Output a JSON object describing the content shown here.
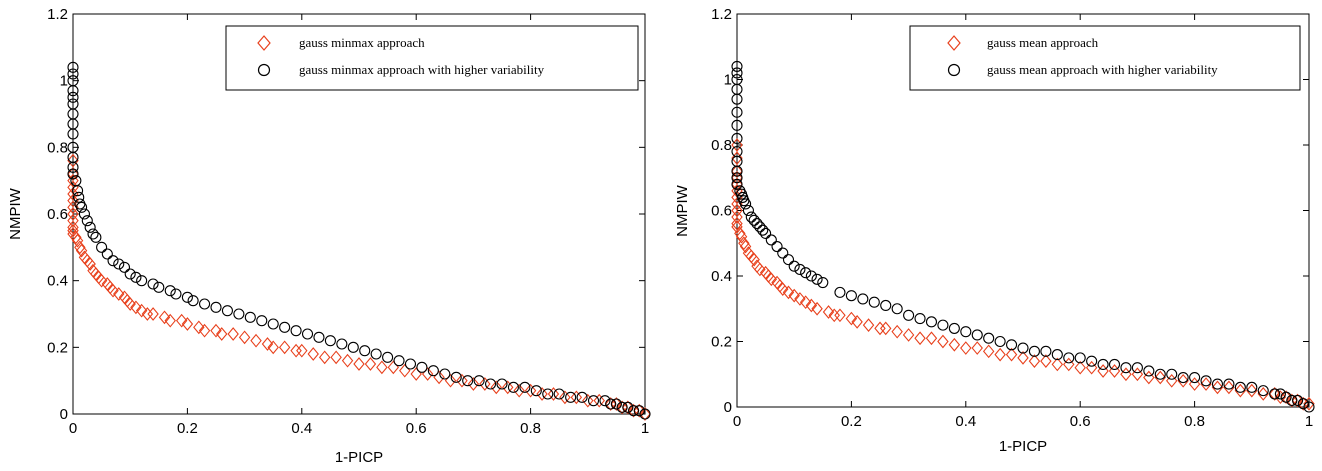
{
  "chart_data": [
    {
      "type": "scatter",
      "xlabel": "1-PICP",
      "ylabel": "NMPIW",
      "xlim": [
        0,
        1
      ],
      "ylim": [
        0,
        1.2
      ],
      "xticks": [
        "0",
        "0.2",
        "0.4",
        "0.6",
        "0.8",
        "1"
      ],
      "yticks": [
        "0",
        "0.2",
        "0.4",
        "0.6",
        "0.8",
        "1",
        "1.2"
      ],
      "grid": false,
      "legend_position": "top-right",
      "series": [
        {
          "name": "gauss minmax approach",
          "marker": "diamond",
          "color": "#e8401c",
          "x": [
            0,
            0,
            0,
            0,
            0,
            0,
            0,
            0,
            0,
            0,
            0,
            0,
            0.005,
            0.008,
            0.012,
            0.015,
            0.02,
            0.025,
            0.03,
            0.035,
            0.04,
            0.045,
            0.05,
            0.06,
            0.065,
            0.07,
            0.08,
            0.09,
            0.095,
            0.1,
            0.11,
            0.12,
            0.13,
            0.14,
            0.16,
            0.17,
            0.19,
            0.2,
            0.22,
            0.23,
            0.25,
            0.26,
            0.28,
            0.3,
            0.32,
            0.34,
            0.35,
            0.37,
            0.39,
            0.4,
            0.42,
            0.44,
            0.46,
            0.48,
            0.5,
            0.52,
            0.54,
            0.56,
            0.58,
            0.6,
            0.62,
            0.64,
            0.66,
            0.68,
            0.7,
            0.72,
            0.74,
            0.76,
            0.78,
            0.8,
            0.82,
            0.84,
            0.86,
            0.88,
            0.9,
            0.92,
            0.94,
            0.95,
            0.96,
            0.97,
            0.98,
            0.99,
            1.0
          ],
          "y": [
            0.76,
            0.72,
            0.7,
            0.68,
            0.66,
            0.64,
            0.62,
            0.6,
            0.58,
            0.56,
            0.55,
            0.54,
            0.53,
            0.52,
            0.5,
            0.49,
            0.47,
            0.46,
            0.45,
            0.43,
            0.42,
            0.41,
            0.4,
            0.39,
            0.38,
            0.37,
            0.36,
            0.35,
            0.34,
            0.33,
            0.32,
            0.31,
            0.3,
            0.3,
            0.29,
            0.28,
            0.28,
            0.27,
            0.26,
            0.25,
            0.25,
            0.24,
            0.24,
            0.23,
            0.22,
            0.21,
            0.2,
            0.2,
            0.19,
            0.19,
            0.18,
            0.17,
            0.17,
            0.16,
            0.15,
            0.15,
            0.14,
            0.14,
            0.13,
            0.12,
            0.12,
            0.11,
            0.1,
            0.1,
            0.09,
            0.09,
            0.08,
            0.08,
            0.07,
            0.07,
            0.06,
            0.06,
            0.05,
            0.05,
            0.04,
            0.04,
            0.03,
            0.03,
            0.02,
            0.02,
            0.01,
            0.01,
            0.0
          ]
        },
        {
          "name": "gauss minmax approach with higher variability",
          "marker": "circle",
          "color": "#000000",
          "x": [
            0,
            0,
            0,
            0,
            0,
            0,
            0,
            0,
            0,
            0,
            0,
            0,
            0,
            0.005,
            0.008,
            0.01,
            0.012,
            0.015,
            0.02,
            0.025,
            0.03,
            0.035,
            0.04,
            0.05,
            0.06,
            0.07,
            0.08,
            0.09,
            0.1,
            0.11,
            0.12,
            0.14,
            0.15,
            0.17,
            0.18,
            0.2,
            0.21,
            0.23,
            0.25,
            0.27,
            0.29,
            0.31,
            0.33,
            0.35,
            0.37,
            0.39,
            0.41,
            0.43,
            0.45,
            0.47,
            0.49,
            0.51,
            0.53,
            0.55,
            0.57,
            0.59,
            0.61,
            0.63,
            0.65,
            0.67,
            0.69,
            0.71,
            0.73,
            0.75,
            0.77,
            0.79,
            0.81,
            0.83,
            0.85,
            0.87,
            0.89,
            0.91,
            0.93,
            0.94,
            0.95,
            0.96,
            0.97,
            0.98,
            0.99,
            1.0
          ],
          "y": [
            1.04,
            1.02,
            1.0,
            0.97,
            0.95,
            0.93,
            0.9,
            0.87,
            0.84,
            0.8,
            0.77,
            0.74,
            0.72,
            0.7,
            0.67,
            0.65,
            0.63,
            0.62,
            0.6,
            0.58,
            0.56,
            0.54,
            0.53,
            0.5,
            0.48,
            0.46,
            0.45,
            0.44,
            0.42,
            0.41,
            0.4,
            0.39,
            0.38,
            0.37,
            0.36,
            0.35,
            0.34,
            0.33,
            0.32,
            0.31,
            0.3,
            0.29,
            0.28,
            0.27,
            0.26,
            0.25,
            0.24,
            0.23,
            0.22,
            0.21,
            0.2,
            0.19,
            0.18,
            0.17,
            0.16,
            0.15,
            0.14,
            0.13,
            0.12,
            0.11,
            0.1,
            0.1,
            0.09,
            0.09,
            0.08,
            0.08,
            0.07,
            0.06,
            0.06,
            0.05,
            0.05,
            0.04,
            0.04,
            0.03,
            0.03,
            0.02,
            0.02,
            0.01,
            0.01,
            0.0
          ]
        }
      ]
    },
    {
      "type": "scatter",
      "xlabel": "1-PICP",
      "ylabel": "NMPIW",
      "xlim": [
        0,
        1
      ],
      "ylim": [
        0,
        1.2
      ],
      "xticks": [
        "0",
        "0.2",
        "0.4",
        "0.6",
        "0.8",
        "1"
      ],
      "yticks": [
        "0",
        "0.2",
        "0.4",
        "0.6",
        "0.8",
        "1",
        "1.2"
      ],
      "grid": false,
      "legend_position": "top-right",
      "series": [
        {
          "name": "gauss mean approach",
          "marker": "diamond",
          "color": "#e8401c",
          "x": [
            0,
            0,
            0,
            0,
            0,
            0,
            0,
            0,
            0,
            0,
            0,
            0,
            0.005,
            0.008,
            0.012,
            0.015,
            0.02,
            0.025,
            0.03,
            0.035,
            0.04,
            0.05,
            0.055,
            0.06,
            0.07,
            0.075,
            0.08,
            0.09,
            0.1,
            0.11,
            0.12,
            0.13,
            0.14,
            0.16,
            0.17,
            0.18,
            0.2,
            0.21,
            0.23,
            0.25,
            0.26,
            0.28,
            0.3,
            0.32,
            0.34,
            0.36,
            0.38,
            0.4,
            0.42,
            0.44,
            0.46,
            0.48,
            0.5,
            0.52,
            0.54,
            0.56,
            0.58,
            0.6,
            0.62,
            0.64,
            0.66,
            0.68,
            0.7,
            0.72,
            0.74,
            0.76,
            0.78,
            0.8,
            0.82,
            0.84,
            0.86,
            0.88,
            0.9,
            0.92,
            0.94,
            0.95,
            0.96,
            0.97,
            0.98,
            0.99,
            1.0
          ],
          "y": [
            0.8,
            0.76,
            0.72,
            0.7,
            0.68,
            0.66,
            0.64,
            0.62,
            0.6,
            0.58,
            0.56,
            0.55,
            0.53,
            0.52,
            0.5,
            0.49,
            0.47,
            0.46,
            0.45,
            0.43,
            0.42,
            0.41,
            0.4,
            0.39,
            0.38,
            0.37,
            0.36,
            0.35,
            0.34,
            0.33,
            0.32,
            0.31,
            0.3,
            0.29,
            0.28,
            0.28,
            0.27,
            0.26,
            0.25,
            0.24,
            0.24,
            0.23,
            0.22,
            0.21,
            0.21,
            0.2,
            0.19,
            0.18,
            0.18,
            0.17,
            0.16,
            0.16,
            0.15,
            0.14,
            0.14,
            0.13,
            0.13,
            0.12,
            0.12,
            0.11,
            0.11,
            0.1,
            0.1,
            0.09,
            0.09,
            0.08,
            0.08,
            0.07,
            0.07,
            0.06,
            0.06,
            0.05,
            0.05,
            0.04,
            0.04,
            0.03,
            0.03,
            0.02,
            0.02,
            0.01,
            0.01
          ]
        },
        {
          "name": "gauss mean approach with higher variability",
          "marker": "circle",
          "color": "#000000",
          "x": [
            0,
            0,
            0,
            0,
            0,
            0,
            0,
            0,
            0,
            0,
            0,
            0,
            0,
            0.005,
            0.008,
            0.01,
            0.012,
            0.015,
            0.02,
            0.025,
            0.03,
            0.035,
            0.04,
            0.045,
            0.05,
            0.06,
            0.07,
            0.08,
            0.09,
            0.1,
            0.11,
            0.12,
            0.13,
            0.14,
            0.15,
            0.18,
            0.2,
            0.22,
            0.24,
            0.26,
            0.28,
            0.3,
            0.32,
            0.34,
            0.36,
            0.38,
            0.4,
            0.42,
            0.44,
            0.46,
            0.48,
            0.5,
            0.52,
            0.54,
            0.56,
            0.58,
            0.6,
            0.62,
            0.64,
            0.66,
            0.68,
            0.7,
            0.72,
            0.74,
            0.76,
            0.78,
            0.8,
            0.82,
            0.84,
            0.86,
            0.88,
            0.9,
            0.92,
            0.94,
            0.95,
            0.96,
            0.97,
            0.98,
            0.99,
            1.0
          ],
          "y": [
            1.04,
            1.02,
            1.0,
            0.97,
            0.94,
            0.9,
            0.86,
            0.82,
            0.78,
            0.75,
            0.72,
            0.7,
            0.68,
            0.66,
            0.65,
            0.64,
            0.63,
            0.62,
            0.6,
            0.58,
            0.57,
            0.56,
            0.55,
            0.54,
            0.53,
            0.51,
            0.49,
            0.47,
            0.45,
            0.43,
            0.42,
            0.41,
            0.4,
            0.39,
            0.38,
            0.35,
            0.34,
            0.33,
            0.32,
            0.31,
            0.3,
            0.28,
            0.27,
            0.26,
            0.25,
            0.24,
            0.23,
            0.22,
            0.21,
            0.2,
            0.19,
            0.18,
            0.17,
            0.17,
            0.16,
            0.15,
            0.15,
            0.14,
            0.13,
            0.13,
            0.12,
            0.12,
            0.11,
            0.1,
            0.1,
            0.09,
            0.09,
            0.08,
            0.07,
            0.07,
            0.06,
            0.06,
            0.05,
            0.04,
            0.04,
            0.03,
            0.02,
            0.02,
            0.01,
            0.0
          ]
        }
      ]
    }
  ]
}
